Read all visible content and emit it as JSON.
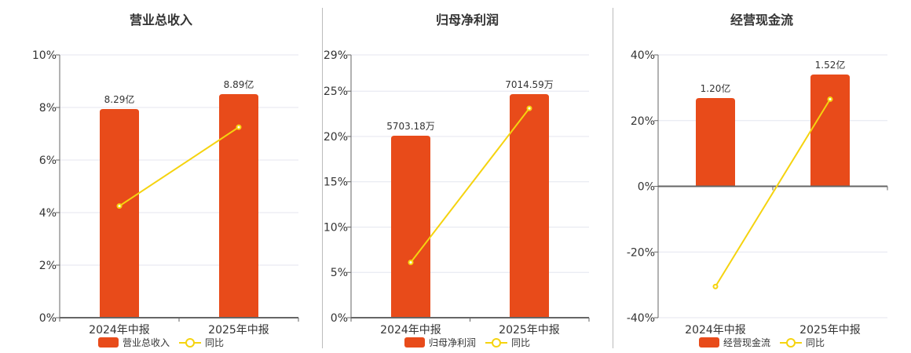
{
  "colors": {
    "bar": "#e84b1a",
    "line": "#f5d30f",
    "grid": "#e4e6ef",
    "axis": "#666666"
  },
  "chart_data": [
    {
      "type": "bar",
      "title": "营业总收入",
      "categories": [
        "2024年中报",
        "2025年中报"
      ],
      "bar_labels": [
        "8.29亿",
        "8.89亿"
      ],
      "bar_values_yi": [
        8.29,
        8.89
      ],
      "yoy_percent": [
        4.25,
        7.25
      ],
      "y_ticks": [
        "0%",
        "2%",
        "4%",
        "6%",
        "8%",
        "10%"
      ],
      "ylim": [
        0,
        10
      ],
      "legend": [
        "营业总收入",
        "同比"
      ]
    },
    {
      "type": "bar",
      "title": "归母净利润",
      "categories": [
        "2024年中报",
        "2025年中报"
      ],
      "bar_labels": [
        "5703.18万",
        "7014.59万"
      ],
      "bar_values_wan": [
        5703.18,
        7014.59
      ],
      "yoy_percent": [
        6.1,
        23.1
      ],
      "y_ticks": [
        "0%",
        "5%",
        "10%",
        "15%",
        "20%",
        "25%",
        "29%"
      ],
      "ylim": [
        0,
        29
      ],
      "legend": [
        "归母净利润",
        "同比"
      ]
    },
    {
      "type": "bar",
      "title": "经营现金流",
      "categories": [
        "2024年中报",
        "2025年中报"
      ],
      "bar_labels": [
        "1.20亿",
        "1.52亿"
      ],
      "bar_values_yi": [
        1.2,
        1.52
      ],
      "yoy_percent": [
        -30.5,
        26.5
      ],
      "y_ticks": [
        "-40%",
        "-20%",
        "0%",
        "20%",
        "40%"
      ],
      "ylim": [
        -40,
        40
      ],
      "legend": [
        "经营现金流",
        "同比"
      ]
    }
  ]
}
